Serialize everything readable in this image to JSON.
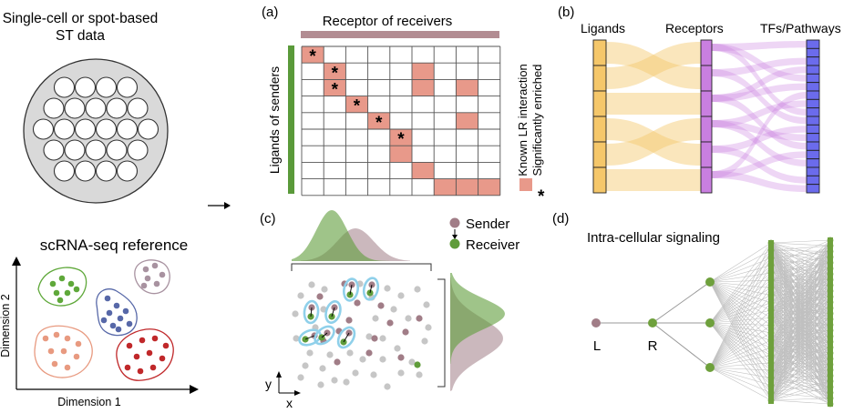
{
  "left_panel": {
    "st_title_line1": "Single-cell or spot-based",
    "st_title_line2": "ST data",
    "ref_title": "scRNA-seq reference",
    "x_axis_label": "Dimension 1",
    "y_axis_label": "Dimension 2"
  },
  "panel_a": {
    "label": "(a)",
    "top_label": "Receptor of receivers",
    "side_label": "Ligands of senders",
    "legend_known": "Known LR interaction",
    "legend_star_symbol": "*",
    "legend_sig": "Significantly enriched",
    "star_char": "*",
    "grid": {
      "rows": 9,
      "cols": 9,
      "known": [
        [
          0,
          0
        ],
        [
          1,
          1
        ],
        [
          2,
          1
        ],
        [
          3,
          2
        ],
        [
          4,
          3
        ],
        [
          5,
          4
        ],
        [
          6,
          4
        ],
        [
          1,
          5
        ],
        [
          2,
          5
        ],
        [
          2,
          7
        ],
        [
          4,
          7
        ],
        [
          7,
          5
        ],
        [
          8,
          6
        ],
        [
          8,
          7
        ],
        [
          8,
          8
        ]
      ],
      "significant": [
        [
          0,
          0
        ],
        [
          1,
          1
        ],
        [
          2,
          1
        ],
        [
          3,
          2
        ],
        [
          4,
          3
        ],
        [
          5,
          4
        ]
      ]
    },
    "colors": {
      "known": "#e8998a",
      "top_bar": "#b28c92",
      "side_bar": "#5a9a3a"
    }
  },
  "panel_b": {
    "label": "(b)",
    "ligands_label": "Ligands",
    "receptors_label": "Receptors",
    "tfs_label": "TFs/Pathways",
    "colors": {
      "ligand": "#f5c76a",
      "receptor": "#c97fe0",
      "tf": "#6b6bec"
    }
  },
  "panel_c": {
    "label": "(c)",
    "sender_label": "Sender",
    "receiver_label": "Receiver",
    "x_label": "x",
    "y_label": "y",
    "colors": {
      "sender": "#a17d87",
      "receiver": "#5f9c3a",
      "other": "#c6c6c6",
      "halo": "#8fd0ea"
    }
  },
  "panel_d": {
    "label": "(d)",
    "title": "Intra-cellular signaling",
    "ligand_node": "L",
    "receptor_node": "R",
    "colors": {
      "ligand": "#a17d87",
      "node": "#6ea03c",
      "edge": "#c0c0c0"
    }
  },
  "cluster_colors": [
    "#5fa83a",
    "#a892a0",
    "#5768a8",
    "#e89a80",
    "#c0282a"
  ]
}
